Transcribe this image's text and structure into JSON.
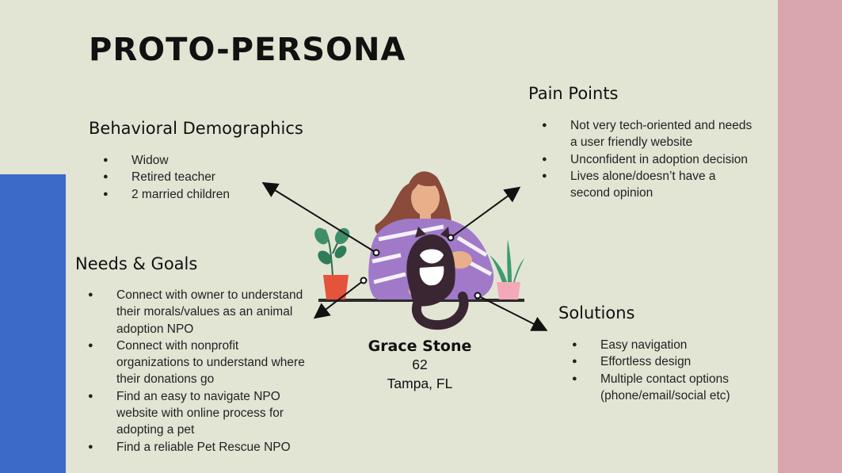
{
  "colors": {
    "background": "#e2e5d4",
    "left_band": "#3a6bc9",
    "right_band": "#d9a6ae"
  },
  "title": "PROTO-PERSONA",
  "behavioral": {
    "heading": "Behavioral Demographics",
    "items": [
      "Widow",
      "Retired teacher",
      "2 married children"
    ]
  },
  "needs": {
    "heading": "Needs & Goals",
    "items": [
      "Connect with owner to understand their morals/values as an animal adoption NPO",
      "Connect with nonprofit organizations to understand where their donations go",
      "Find an easy to navigate NPO website with online process for adopting a pet",
      "Find a reliable Pet Rescue NPO"
    ]
  },
  "pain": {
    "heading": "Pain Points",
    "items": [
      "Not very tech-oriented and needs a user friendly website",
      "Unconfident in adoption decision",
      "Lives alone/doesn’t have a second opinion"
    ]
  },
  "solutions": {
    "heading": "Solutions",
    "items": [
      "Easy navigation",
      "Effortless design",
      "Multiple contact options (phone/email/social etc)"
    ]
  },
  "persona": {
    "name": "Grace Stone",
    "age": "62",
    "location": "Tampa, FL"
  },
  "illustration": {
    "subject": "woman-holding-cat-icon",
    "plants": [
      "potted-plant-icon",
      "succulent-icon"
    ]
  }
}
